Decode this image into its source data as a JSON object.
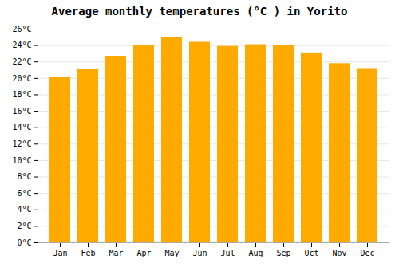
{
  "chart_data": {
    "type": "bar",
    "title": "Average monthly temperatures (°C ) in Yorito",
    "categories": [
      "Jan",
      "Feb",
      "Mar",
      "Apr",
      "May",
      "Jun",
      "Jul",
      "Aug",
      "Sep",
      "Oct",
      "Nov",
      "Dec"
    ],
    "values": [
      20.1,
      21.1,
      22.7,
      24.0,
      25.0,
      24.4,
      23.9,
      24.1,
      24.0,
      23.1,
      21.8,
      21.2
    ],
    "color": "#FFAA00",
    "ylim": [
      0,
      26
    ],
    "yticks": [
      {
        "value": 0,
        "label": "0°C"
      },
      {
        "value": 2,
        "label": "2°C"
      },
      {
        "value": 4,
        "label": "4°C"
      },
      {
        "value": 6,
        "label": "6°C"
      },
      {
        "value": 8,
        "label": "8°C"
      },
      {
        "value": 10,
        "label": "10°C"
      },
      {
        "value": 12,
        "label": "12°C"
      },
      {
        "value": 14,
        "label": "14°C"
      },
      {
        "value": 16,
        "label": "16°C"
      },
      {
        "value": 18,
        "label": "18°C"
      },
      {
        "value": 20,
        "label": "20°C"
      },
      {
        "value": 22,
        "label": "22°C"
      },
      {
        "value": 24,
        "label": "24°C"
      },
      {
        "value": 26,
        "label": "26°C"
      }
    ],
    "grid": true
  }
}
